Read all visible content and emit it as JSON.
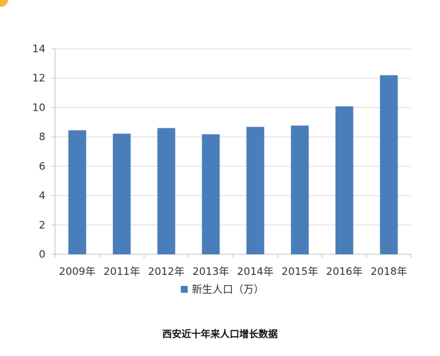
{
  "chart_data": {
    "type": "bar",
    "categories": [
      "2009年",
      "2011年",
      "2012年",
      "2013年",
      "2014年",
      "2015年",
      "2016年",
      "2018年"
    ],
    "series": [
      {
        "name": "新生人口（万）",
        "values": [
          8.45,
          8.22,
          8.6,
          8.18,
          8.68,
          8.77,
          10.08,
          12.2
        ]
      }
    ],
    "ylim": [
      0,
      14
    ],
    "yticks": [
      0,
      2,
      4,
      6,
      8,
      10,
      12,
      14
    ],
    "grid": true,
    "legend": "bottom",
    "caption": "西安近十年来人口增长数据",
    "colors": {
      "bar": "#4a7ebb",
      "grid": "#d9d9d9",
      "axis": "#bfbfbf",
      "text": "#333333"
    }
  }
}
